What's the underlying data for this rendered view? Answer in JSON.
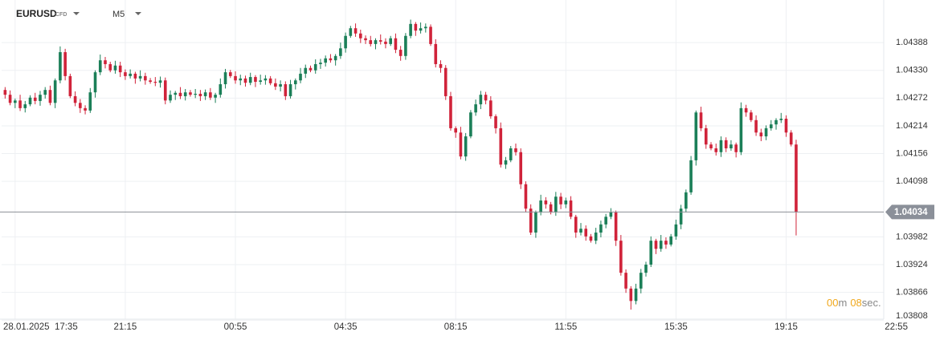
{
  "header": {
    "symbol": "EURUSD",
    "instrument_type": "CFD",
    "timeframe": "M5"
  },
  "countdown": {
    "minutes": "00",
    "minutes_unit": "m",
    "seconds": "08",
    "seconds_unit": "sec."
  },
  "chart_data": {
    "type": "candlestick",
    "up_color": "#1b7f58",
    "down_color": "#d0233a",
    "xlim": [
      -0.7,
      175.5
    ],
    "xticks": [
      {
        "value": 2,
        "label": "28.01.2025  17:35"
      },
      {
        "value": 24,
        "label": "21:15"
      },
      {
        "value": 46,
        "label": "00:55"
      },
      {
        "value": 68,
        "label": "04:35"
      },
      {
        "value": 90,
        "label": "08:15"
      },
      {
        "value": 112,
        "label": "11:55"
      },
      {
        "value": 134,
        "label": "15:35"
      },
      {
        "value": 156,
        "label": "19:15"
      },
      {
        "value": 178,
        "label": "22:55"
      }
    ],
    "ylim": [
      1.038,
      1.04477
    ],
    "yticks": [
      1.04388,
      {
        "value": 1.0433,
        "label": "1.04330"
      },
      1.04272,
      1.04214,
      1.04156,
      1.04098,
      1.03982,
      1.03924,
      1.03866,
      1.03808
    ],
    "grid": true,
    "candles": [
      [
        1.04289,
        1.04295,
        1.04271,
        1.04279
      ],
      [
        1.04279,
        1.04288,
        1.04257,
        1.04262
      ],
      [
        1.04262,
        1.04271,
        1.04251,
        1.04267
      ],
      [
        1.04267,
        1.04279,
        1.04245,
        1.04251
      ],
      [
        1.04251,
        1.04266,
        1.04242,
        1.04259
      ],
      [
        1.04259,
        1.04278,
        1.04255,
        1.04273
      ],
      [
        1.04273,
        1.04283,
        1.04259,
        1.04266
      ],
      [
        1.04266,
        1.04287,
        1.04256,
        1.04279
      ],
      [
        1.04279,
        1.04295,
        1.04271,
        1.04289
      ],
      [
        1.04289,
        1.04298,
        1.04257,
        1.04262
      ],
      [
        1.04262,
        1.04313,
        1.04251,
        1.04309
      ],
      [
        1.04309,
        1.0438,
        1.04303,
        1.04368
      ],
      [
        1.04368,
        1.04375,
        1.04309,
        1.04318
      ],
      [
        1.04318,
        1.04323,
        1.04272,
        1.04276
      ],
      [
        1.04276,
        1.04286,
        1.04255,
        1.04262
      ],
      [
        1.04262,
        1.0427,
        1.04241,
        1.04251
      ],
      [
        1.04251,
        1.04257,
        1.04238,
        1.04246
      ],
      [
        1.04246,
        1.04293,
        1.04241,
        1.04284
      ],
      [
        1.04284,
        1.0433,
        1.04273,
        1.04326
      ],
      [
        1.04326,
        1.04363,
        1.0432,
        1.04351
      ],
      [
        1.04351,
        1.04358,
        1.04334,
        1.04343
      ],
      [
        1.04343,
        1.04348,
        1.04326,
        1.0433
      ],
      [
        1.0433,
        1.0435,
        1.04323,
        1.0434
      ],
      [
        1.0434,
        1.04348,
        1.04316,
        1.04326
      ],
      [
        1.04326,
        1.04332,
        1.0431,
        1.04318
      ],
      [
        1.04318,
        1.04332,
        1.04313,
        1.04323
      ],
      [
        1.04323,
        1.04327,
        1.04302,
        1.04313
      ],
      [
        1.04313,
        1.0433,
        1.04307,
        1.04318
      ],
      [
        1.04318,
        1.04325,
        1.043,
        1.04309
      ],
      [
        1.04309,
        1.04314,
        1.04302,
        1.04306
      ],
      [
        1.04306,
        1.04316,
        1.04297,
        1.04304
      ],
      [
        1.04304,
        1.04317,
        1.04294,
        1.04309
      ],
      [
        1.04309,
        1.04315,
        1.04259,
        1.04267
      ],
      [
        1.04267,
        1.04288,
        1.04262,
        1.04279
      ],
      [
        1.04279,
        1.04287,
        1.04268,
        1.04283
      ],
      [
        1.04283,
        1.04295,
        1.0427,
        1.04276
      ],
      [
        1.04276,
        1.04291,
        1.04267,
        1.04284
      ],
      [
        1.04284,
        1.04289,
        1.04275,
        1.04279
      ],
      [
        1.04279,
        1.04291,
        1.04272,
        1.04281
      ],
      [
        1.04281,
        1.04289,
        1.04266,
        1.04276
      ],
      [
        1.04276,
        1.0429,
        1.04268,
        1.04284
      ],
      [
        1.04284,
        1.04293,
        1.04268,
        1.04273
      ],
      [
        1.04273,
        1.04283,
        1.04262,
        1.04279
      ],
      [
        1.04279,
        1.04313,
        1.04273,
        1.04301
      ],
      [
        1.04301,
        1.04333,
        1.04292,
        1.04326
      ],
      [
        1.04326,
        1.04331,
        1.04314,
        1.04318
      ],
      [
        1.04318,
        1.04328,
        1.04302,
        1.04309
      ],
      [
        1.04309,
        1.04321,
        1.04299,
        1.04313
      ],
      [
        1.04313,
        1.04319,
        1.04296,
        1.04304
      ],
      [
        1.04304,
        1.04325,
        1.04299,
        1.04316
      ],
      [
        1.04316,
        1.0432,
        1.04295,
        1.04306
      ],
      [
        1.04306,
        1.04321,
        1.043,
        1.04309
      ],
      [
        1.04309,
        1.0432,
        1.043,
        1.04313
      ],
      [
        1.04313,
        1.04318,
        1.04299,
        1.04303
      ],
      [
        1.04303,
        1.04313,
        1.04289,
        1.04296
      ],
      [
        1.04296,
        1.04309,
        1.04286,
        1.04301
      ],
      [
        1.04301,
        1.04307,
        1.04268,
        1.04276
      ],
      [
        1.04276,
        1.0431,
        1.04271,
        1.04301
      ],
      [
        1.04301,
        1.04313,
        1.0429,
        1.04309
      ],
      [
        1.04309,
        1.04335,
        1.04303,
        1.04323
      ],
      [
        1.04323,
        1.04342,
        1.04314,
        1.04335
      ],
      [
        1.04335,
        1.0434,
        1.04326,
        1.0433
      ],
      [
        1.0433,
        1.04353,
        1.04323,
        1.04343
      ],
      [
        1.04343,
        1.04354,
        1.04333,
        1.04346
      ],
      [
        1.04346,
        1.04361,
        1.04338,
        1.04355
      ],
      [
        1.04355,
        1.04364,
        1.04346,
        1.04351
      ],
      [
        1.04351,
        1.04364,
        1.0434,
        1.0436
      ],
      [
        1.0436,
        1.04388,
        1.04354,
        1.04376
      ],
      [
        1.04376,
        1.04409,
        1.04367,
        1.04402
      ],
      [
        1.04402,
        1.04423,
        1.04398,
        1.04418
      ],
      [
        1.04418,
        1.04428,
        1.044,
        1.04407
      ],
      [
        1.04407,
        1.04415,
        1.04387,
        1.04397
      ],
      [
        1.04397,
        1.04403,
        1.04385,
        1.04393
      ],
      [
        1.04393,
        1.04402,
        1.0438,
        1.04385
      ],
      [
        1.04385,
        1.04397,
        1.04374,
        1.04393
      ],
      [
        1.04393,
        1.04405,
        1.04384,
        1.0439
      ],
      [
        1.0439,
        1.04397,
        1.04376,
        1.04385
      ],
      [
        1.04385,
        1.04402,
        1.04381,
        1.04397
      ],
      [
        1.04397,
        1.04407,
        1.04366,
        1.04373
      ],
      [
        1.04373,
        1.04381,
        1.0435,
        1.0436
      ],
      [
        1.0436,
        1.04408,
        1.04352,
        1.04402
      ],
      [
        1.04402,
        1.04436,
        1.04397,
        1.04427
      ],
      [
        1.04427,
        1.04431,
        1.04402,
        1.04413
      ],
      [
        1.04413,
        1.0443,
        1.04407,
        1.04418
      ],
      [
        1.04418,
        1.04428,
        1.04409,
        1.04421
      ],
      [
        1.04421,
        1.04426,
        1.04381,
        1.04385
      ],
      [
        1.04385,
        1.04395,
        1.04336,
        1.04343
      ],
      [
        1.04343,
        1.04351,
        1.04325,
        1.04335
      ],
      [
        1.04335,
        1.04341,
        1.04268,
        1.04276
      ],
      [
        1.04276,
        1.04285,
        1.04204,
        1.04209
      ],
      [
        1.04209,
        1.04213,
        1.04189,
        1.042
      ],
      [
        1.042,
        1.04212,
        1.04144,
        1.0415
      ],
      [
        1.0415,
        1.04199,
        1.04141,
        1.04192
      ],
      [
        1.04192,
        1.04247,
        1.04188,
        1.04242
      ],
      [
        1.04242,
        1.04269,
        1.04235,
        1.04259
      ],
      [
        1.04259,
        1.04287,
        1.04249,
        1.04279
      ],
      [
        1.04279,
        1.04285,
        1.04259,
        1.04267
      ],
      [
        1.04267,
        1.04276,
        1.04229,
        1.04234
      ],
      [
        1.04234,
        1.04238,
        1.04198,
        1.04209
      ],
      [
        1.04209,
        1.04221,
        1.04127,
        1.04133
      ],
      [
        1.04133,
        1.04149,
        1.04124,
        1.04142
      ],
      [
        1.04142,
        1.04172,
        1.04138,
        1.04167
      ],
      [
        1.04167,
        1.04177,
        1.04152,
        1.04159
      ],
      [
        1.04159,
        1.04167,
        1.04082,
        1.04092
      ],
      [
        1.04092,
        1.04098,
        1.04033,
        1.04041
      ],
      [
        1.04041,
        1.0405,
        1.03986,
        1.03991
      ],
      [
        1.03991,
        1.04037,
        1.0398,
        1.04033
      ],
      [
        1.04033,
        1.0407,
        1.04027,
        1.04058
      ],
      [
        1.04058,
        1.04065,
        1.04041,
        1.0405
      ],
      [
        1.0405,
        1.04055,
        1.04029,
        1.04033
      ],
      [
        1.04033,
        1.04076,
        1.04026,
        1.04066
      ],
      [
        1.04066,
        1.04074,
        1.0404,
        1.0405
      ],
      [
        1.0405,
        1.04064,
        1.04042,
        1.04058
      ],
      [
        1.04058,
        1.04067,
        1.04019,
        1.04024
      ],
      [
        1.04024,
        1.04028,
        1.0398,
        1.03991
      ],
      [
        1.03991,
        1.04011,
        1.03985,
        1.03999
      ],
      [
        1.03999,
        1.04006,
        1.03974,
        1.03983
      ],
      [
        1.03983,
        1.03988,
        1.0397,
        1.03974
      ],
      [
        1.03974,
        1.04001,
        1.03967,
        1.03991
      ],
      [
        1.03991,
        1.04016,
        1.03981,
        1.04008
      ],
      [
        1.04008,
        1.0403,
        1.04,
        1.04024
      ],
      [
        1.04024,
        1.04042,
        1.04019,
        1.04033
      ],
      [
        1.04033,
        1.04037,
        1.03963,
        1.03974
      ],
      [
        1.03974,
        1.03986,
        1.03901,
        1.03907
      ],
      [
        1.03907,
        1.03914,
        1.03865,
        1.03874
      ],
      [
        1.03874,
        1.03879,
        1.0383,
        1.03848
      ],
      [
        1.03848,
        1.03884,
        1.03841,
        1.03874
      ],
      [
        1.03874,
        1.03915,
        1.03864,
        1.03907
      ],
      [
        1.03907,
        1.0393,
        1.03899,
        1.03924
      ],
      [
        1.03924,
        1.03983,
        1.03919,
        1.03974
      ],
      [
        1.03974,
        1.03978,
        1.03946,
        1.03957
      ],
      [
        1.03957,
        1.03986,
        1.03951,
        1.03974
      ],
      [
        1.03974,
        1.03981,
        1.03957,
        1.03966
      ],
      [
        1.03966,
        1.03988,
        1.03962,
        1.03983
      ],
      [
        1.03983,
        1.04018,
        1.03976,
        1.04008
      ],
      [
        1.04008,
        1.04049,
        1.03998,
        1.04041
      ],
      [
        1.04041,
        1.04081,
        1.04033,
        1.04075
      ],
      [
        1.04075,
        1.04151,
        1.0407,
        1.04142
      ],
      [
        1.04142,
        1.04246,
        1.04131,
        1.04242
      ],
      [
        1.04242,
        1.04254,
        1.04203,
        1.04209
      ],
      [
        1.04209,
        1.04216,
        1.04166,
        1.04175
      ],
      [
        1.04175,
        1.0418,
        1.04163,
        1.04167
      ],
      [
        1.04167,
        1.04177,
        1.04152,
        1.04159
      ],
      [
        1.04159,
        1.04192,
        1.04149,
        1.04184
      ],
      [
        1.04184,
        1.0419,
        1.04159,
        1.04167
      ],
      [
        1.04167,
        1.04184,
        1.04162,
        1.04175
      ],
      [
        1.04175,
        1.04179,
        1.04148,
        1.04159
      ],
      [
        1.04159,
        1.04263,
        1.04153,
        1.04251
      ],
      [
        1.04251,
        1.04258,
        1.04233,
        1.04242
      ],
      [
        1.04242,
        1.04247,
        1.04222,
        1.04226
      ],
      [
        1.04226,
        1.04236,
        1.04193,
        1.042
      ],
      [
        1.042,
        1.04208,
        1.04182,
        1.04192
      ],
      [
        1.04192,
        1.04215,
        1.04184,
        1.04209
      ],
      [
        1.04209,
        1.04226,
        1.04204,
        1.04217
      ],
      [
        1.04217,
        1.0423,
        1.04206,
        1.04226
      ],
      [
        1.04226,
        1.04241,
        1.0422,
        1.04229
      ],
      [
        1.04229,
        1.04236,
        1.04191,
        1.042
      ],
      [
        1.042,
        1.04205,
        1.04171,
        1.04175
      ],
      [
        1.04175,
        1.04185,
        1.03985,
        1.04034
      ]
    ]
  }
}
